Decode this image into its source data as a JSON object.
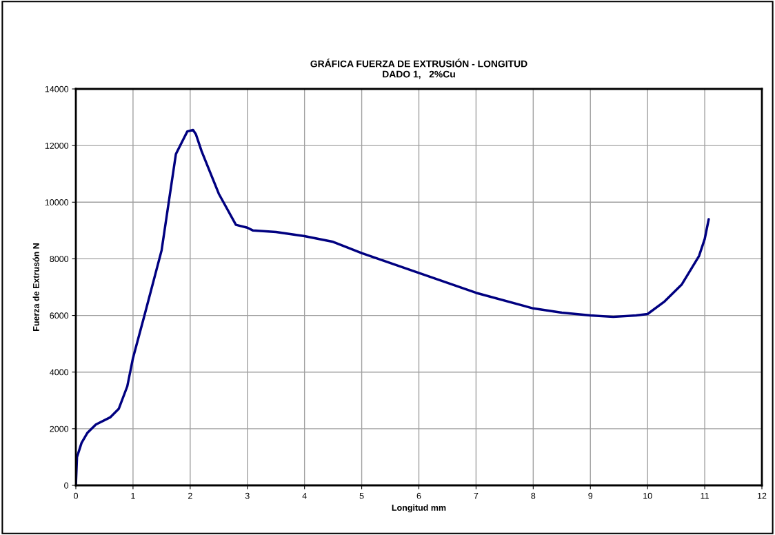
{
  "chart_data": {
    "type": "line",
    "title": "GRÁFICA FUERZA DE EXTRUSIÓN - LONGITUD\nDADO 1,   2%Cu",
    "xlabel": "Longitud mm",
    "ylabel": "Fuerza de Extrusón N",
    "xlim": [
      0,
      12
    ],
    "xticks": [
      0,
      1,
      2,
      3,
      4,
      5,
      6,
      7,
      8,
      9,
      10,
      11,
      12
    ],
    "ylim": [
      0,
      14000
    ],
    "yticks": [
      0,
      2000,
      4000,
      6000,
      8000,
      10000,
      12000,
      14000
    ],
    "grid": true,
    "marker": "none",
    "line_style": "solid",
    "series": [
      {
        "color": "#000080",
        "x": [
          0,
          0.02,
          0.1,
          0.2,
          0.35,
          0.6,
          0.75,
          0.9,
          1.0,
          1.2,
          1.5,
          1.75,
          1.85,
          1.95,
          2.05,
          2.1,
          2.2,
          2.5,
          2.8,
          3.0,
          3.1,
          3.5,
          4.0,
          4.5,
          5.0,
          6.0,
          7.0,
          8.0,
          8.5,
          9.0,
          9.4,
          9.8,
          10.0,
          10.3,
          10.6,
          10.9,
          11.0,
          11.07
        ],
        "values": [
          0,
          1000,
          1500,
          1850,
          2150,
          2400,
          2700,
          3500,
          4500,
          6000,
          8300,
          11700,
          12100,
          12500,
          12550,
          12400,
          11800,
          10300,
          9200,
          9100,
          9000,
          8950,
          8800,
          8600,
          8200,
          7500,
          6800,
          6250,
          6100,
          6000,
          5950,
          6000,
          6050,
          6500,
          7100,
          8100,
          8700,
          9400
        ]
      }
    ]
  }
}
